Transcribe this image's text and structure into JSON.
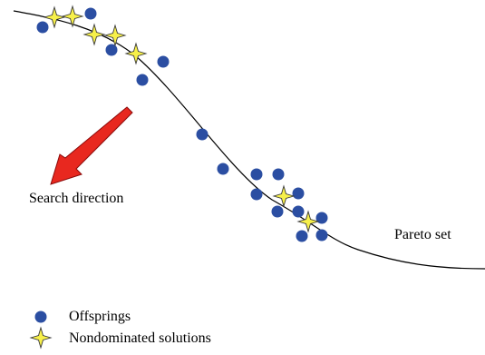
{
  "labels": {
    "search_direction": "Search direction",
    "pareto_set": "Pareto set"
  },
  "legend": {
    "offsprings": "Offsprings",
    "nondominated": "Nondominated solutions"
  },
  "colors": {
    "offspring": "#2b4ea2",
    "nondominated_fill": "#f7f04a",
    "nondominated_stroke": "#3a3a3a",
    "curve": "#000000",
    "arrow": "#e8281f",
    "arrow_stroke": "#8a0a0a"
  },
  "icons": {
    "offspring_marker": "filled-circle",
    "nondominated_marker": "four-point-star",
    "arrow": "red-arrow"
  }
}
